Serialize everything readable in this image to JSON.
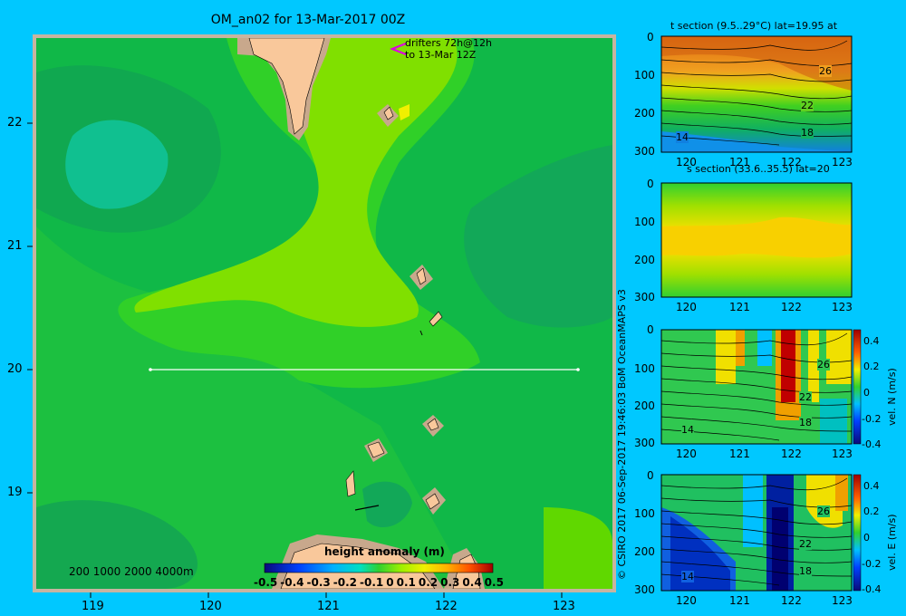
{
  "map": {
    "title": "OM_an02 for 13-Mar-2017 00Z",
    "drifter_note_line1": "drifters 72h@12h",
    "drifter_note_line2": "to 13-Mar 12Z",
    "bathy_legend": "200  1000  2000  4000m",
    "lon_ticks": [
      "119",
      "120",
      "121",
      "122",
      "123"
    ],
    "lat_ticks": [
      "22",
      "21",
      "20",
      "19"
    ],
    "section_line_lat": 20,
    "section_line_lon_range": [
      119.5,
      123.2
    ],
    "colorbar": {
      "title": "height anomaly (m)",
      "ticks": [
        "-0.5",
        "-0.4",
        "-0.3",
        "-0.2",
        "-0.1",
        "0",
        "0.1",
        "0.2",
        "0.3",
        "0.4",
        "0.5"
      ],
      "range": [
        -0.5,
        0.5
      ]
    },
    "colors": {
      "land": "#f9c89b",
      "shelf": "#c8a88c",
      "frame": "#c8b4a0"
    }
  },
  "credit": "© CSIRO 2017   06-Sep-2017 19:46:03 BoM OceanMAPS v3",
  "panels": [
    {
      "title": "t section (9.5..29°C) lat=19.95 at",
      "x_ticks": [
        "120",
        "121",
        "122",
        "123"
      ],
      "y_ticks": [
        "0",
        "100",
        "200",
        "300"
      ],
      "contour_labels": [
        "26",
        "22",
        "18",
        "14"
      ]
    },
    {
      "title": "s section (33.6..35.5) lat=20",
      "x_ticks": [
        "120",
        "121",
        "122",
        "123"
      ],
      "y_ticks": [
        "0",
        "100",
        "200",
        "300"
      ]
    },
    {
      "title": "",
      "x_ticks": [
        "120",
        "121",
        "122",
        "123"
      ],
      "y_ticks": [
        "0",
        "100",
        "200",
        "300"
      ],
      "contour_labels": [
        "26",
        "22",
        "18",
        "14"
      ],
      "colorbar_ticks": [
        "0.4",
        "0.2",
        "0",
        "-0.2",
        "-0.4"
      ],
      "colorbar_label": "vel. N (m/s)"
    },
    {
      "title": "",
      "x_ticks": [
        "120",
        "121",
        "122",
        "123"
      ],
      "y_ticks": [
        "0",
        "100",
        "200",
        "300"
      ],
      "contour_labels": [
        "26",
        "22",
        "18",
        "14"
      ],
      "colorbar_ticks": [
        "0.4",
        "0.2",
        "0",
        "-0.2",
        "-0.4"
      ],
      "colorbar_label": "vel. E (m/s)"
    }
  ]
}
